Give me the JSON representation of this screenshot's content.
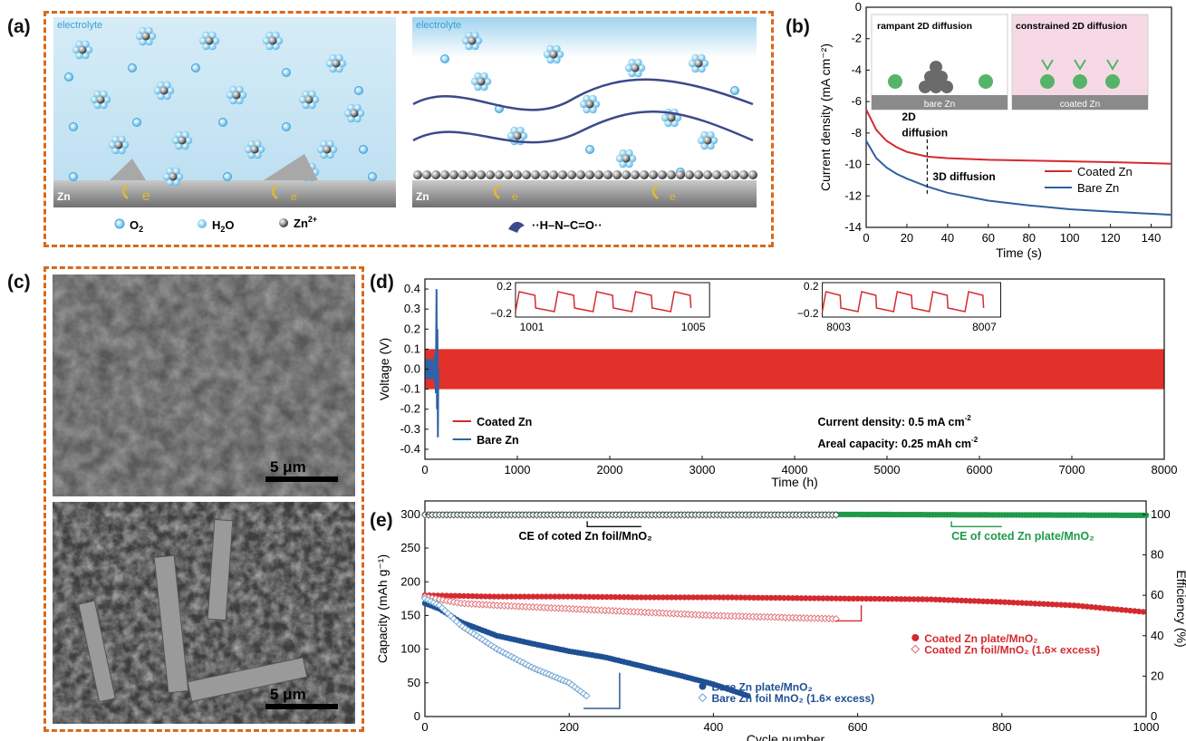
{
  "panel_labels": [
    "(a)",
    "(b)",
    "(c)",
    "(d)",
    "(e)"
  ],
  "panel_a": {
    "left_label_top": "electrolyte",
    "right_label_top": "electrolyte",
    "substrate_label": "Zn",
    "electron_label": "e",
    "legend": [
      {
        "symbol": "O",
        "sub": "2"
      },
      {
        "symbol": "H",
        "sub": "2",
        "tail": "O"
      },
      {
        "symbol": "Zn",
        "sup": "2+"
      }
    ],
    "bond_formula": "··H–N–C=O··"
  },
  "panel_b": {
    "inset_left_title": "rampant 2D diffusion",
    "inset_left_substrate": "bare Zn",
    "inset_right_title": "constrained 2D diffusion",
    "inset_right_substrate": "coated Zn",
    "annotation_2d_line1": "2D",
    "annotation_2d_line2": "diffusion",
    "annotation_3d": "3D diffusion",
    "colors": {
      "coated": "#d42a2f",
      "bare": "#2f5f9e"
    }
  },
  "panel_c": {
    "scalebar_top": "5 μm",
    "scalebar_bottom": "5 μm"
  },
  "panel_d": {
    "annotation_line1": "Current density: 0.5 mA cm",
    "annotation_line1_sup": "-2",
    "annotation_line2": "Areal capacity: 0.25 mAh cm",
    "annotation_line2_sup": "-2",
    "inset_left_ticks_x": [
      "1001",
      "1005"
    ],
    "inset_right_ticks_x": [
      "8003",
      "8007"
    ],
    "inset_ticks_y": [
      "0.2",
      "−0.2"
    ]
  },
  "panel_e": {
    "annotation_ce_foil": "CE of coted Zn foil/MnO₂",
    "annotation_ce_plate": "CE of coted Zn plate/MnO₂",
    "colors": {
      "coated_plate": "#d42a2f",
      "coated_foil": "#e06a6e",
      "bare_plate": "#1f4f94",
      "bare_foil": "#6a9fd0",
      "ce_plate": "#1f9a4a",
      "ce_foil": "#555555"
    }
  },
  "chart_data": [
    {
      "id": "b",
      "type": "line",
      "xlabel": "Time (s)",
      "ylabel": "Current density (mA cm⁻²)",
      "xlim": [
        0,
        150
      ],
      "ylim": [
        -14,
        0
      ],
      "xticks": [
        "0",
        "20",
        "40",
        "60",
        "80",
        "100",
        "120",
        "140"
      ],
      "yticks": [
        "0",
        "-2",
        "-4",
        "-6",
        "-8",
        "-10",
        "-12",
        "-14"
      ],
      "series": [
        {
          "name": "Coated Zn",
          "x": [
            0,
            5,
            10,
            15,
            20,
            30,
            40,
            60,
            80,
            100,
            120,
            150
          ],
          "values": [
            -6.5,
            -7.8,
            -8.5,
            -8.9,
            -9.2,
            -9.5,
            -9.6,
            -9.7,
            -9.75,
            -9.8,
            -9.85,
            -9.95
          ]
        },
        {
          "name": "Bare Zn",
          "x": [
            0,
            5,
            10,
            15,
            20,
            30,
            40,
            60,
            80,
            100,
            120,
            150
          ],
          "values": [
            -8.5,
            -9.6,
            -10.2,
            -10.6,
            -10.9,
            -11.4,
            -11.8,
            -12.3,
            -12.6,
            -12.85,
            -13.0,
            -13.2
          ]
        }
      ],
      "legend": "bottom-right"
    },
    {
      "id": "d",
      "type": "line",
      "xlabel": "Time (h)",
      "ylabel": "Voltage (V)",
      "xlim": [
        0,
        8000
      ],
      "ylim": [
        -0.45,
        0.45
      ],
      "xticks": [
        "0",
        "1000",
        "2000",
        "3000",
        "4000",
        "5000",
        "6000",
        "7000",
        "8000"
      ],
      "yticks": [
        "0.4",
        "0.3",
        "0.2",
        "0.1",
        "0.0",
        "-0.1",
        "-0.2",
        "-0.3",
        "-0.4"
      ],
      "series": [
        {
          "name": "Coated Zn",
          "x": [
            0,
            8000
          ],
          "values": [
            0.1,
            -0.1
          ]
        },
        {
          "name": "Bare Zn",
          "x": [
            0,
            80,
            120,
            140
          ],
          "values": [
            0.05,
            0.05,
            0.4,
            -0.34
          ]
        }
      ],
      "legend": "bottom-left"
    },
    {
      "id": "e",
      "type": "scatter",
      "xlabel": "Cycle number",
      "ylabel": "Capacity (mAh g⁻¹)",
      "y2label": "Efficiency (%)",
      "xlim": [
        0,
        1000
      ],
      "ylim": [
        0,
        320
      ],
      "y2lim": [
        0,
        106.7
      ],
      "xticks": [
        "0",
        "200",
        "400",
        "600",
        "800",
        "1000"
      ],
      "yticks": [
        "0",
        "50",
        "100",
        "150",
        "200",
        "250",
        "300"
      ],
      "y2ticks": [
        "0",
        "20",
        "40",
        "60",
        "80",
        "100"
      ],
      "series": [
        {
          "name": "Coated Zn plate/MnO₂",
          "x": [
            0,
            100,
            200,
            300,
            400,
            500,
            600,
            700,
            800,
            900,
            1000
          ],
          "values": [
            180,
            178,
            178,
            177,
            177,
            176,
            175,
            174,
            170,
            165,
            155
          ]
        },
        {
          "name": "Coated Zn foil/MnO₂ (1.6× excess)",
          "x": [
            0,
            50,
            100,
            200,
            300,
            400,
            500,
            570
          ],
          "values": [
            178,
            168,
            165,
            160,
            155,
            150,
            147,
            145
          ]
        },
        {
          "name": "Bare Zn plate/MnO₂",
          "x": [
            0,
            20,
            50,
            100,
            150,
            200,
            250,
            300,
            350,
            400,
            450
          ],
          "values": [
            168,
            160,
            140,
            120,
            108,
            97,
            88,
            75,
            62,
            48,
            30
          ]
        },
        {
          "name": "Bare Zn foil MnO₂ (1.6× excess)",
          "x": [
            0,
            20,
            50,
            100,
            150,
            200,
            225
          ],
          "values": [
            175,
            165,
            135,
            100,
            72,
            50,
            30
          ]
        },
        {
          "name": "CE of coted Zn plate/MnO₂",
          "x": [
            0,
            600,
            1000
          ],
          "values": [
            100,
            100,
            99.6
          ]
        },
        {
          "name": "CE of coted Zn foil/MnO₂",
          "x": [
            0,
            570
          ],
          "values": [
            99.8,
            99.8
          ]
        }
      ],
      "legend": "right"
    }
  ]
}
